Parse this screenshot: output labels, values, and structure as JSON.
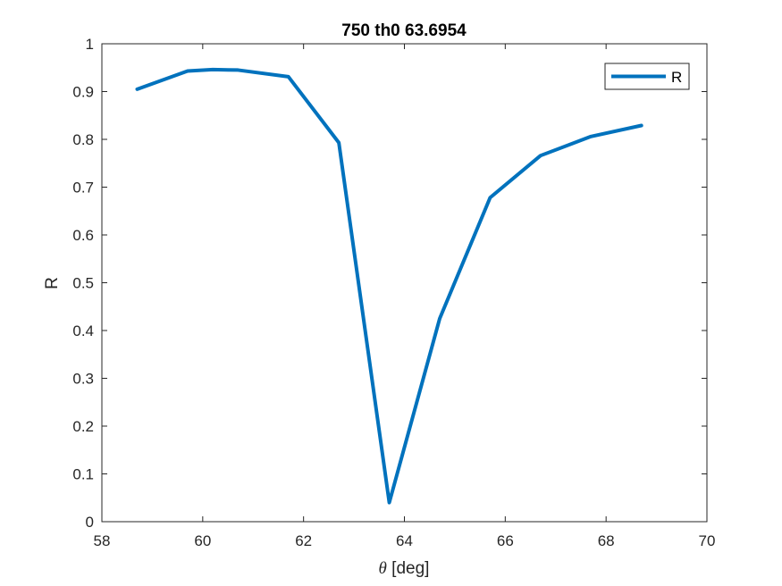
{
  "chart_data": {
    "type": "line",
    "title": "750 th0 63.6954",
    "xlabel_symbol": "θ",
    "xlabel_unit": "[deg]",
    "ylabel": "R",
    "xlim": [
      58,
      70
    ],
    "ylim": [
      0,
      1
    ],
    "xticks": [
      "58",
      "60",
      "62",
      "64",
      "66",
      "68",
      "70"
    ],
    "yticks": [
      "0",
      "0.1",
      "0.2",
      "0.3",
      "0.4",
      "0.5",
      "0.6",
      "0.7",
      "0.8",
      "0.9",
      "1"
    ],
    "grid": false,
    "legend_position": "top-right",
    "series": [
      {
        "name": "R",
        "color": "#0072BD",
        "x": [
          58.7,
          59.7,
          60.2,
          60.7,
          61.7,
          62.7,
          63.7,
          64.7,
          65.7,
          66.7,
          67.7,
          68.7
        ],
        "y": [
          0.905,
          0.943,
          0.946,
          0.945,
          0.931,
          0.793,
          0.04,
          0.425,
          0.678,
          0.766,
          0.806,
          0.829
        ]
      }
    ]
  }
}
